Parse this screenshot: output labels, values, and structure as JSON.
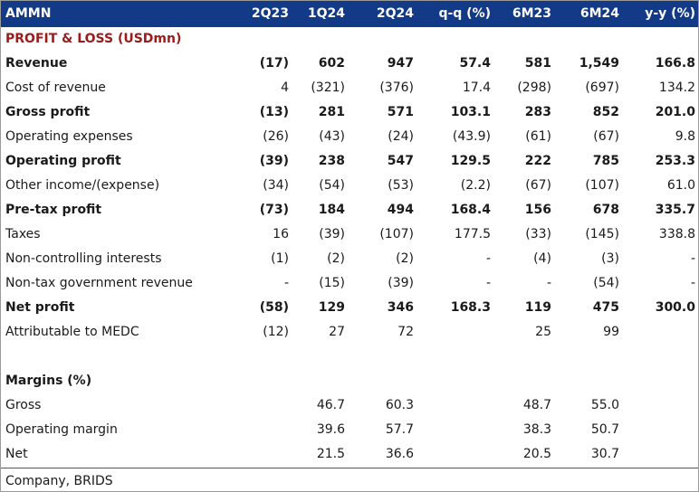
{
  "header": {
    "ticker": "AMMN",
    "columns": [
      "2Q23",
      "1Q24",
      "2Q24",
      "q-q (%)",
      "6M23",
      "6M24",
      "y-y (%)"
    ]
  },
  "section_title": "PROFIT & LOSS (USDmn)",
  "rows": [
    {
      "label": "Revenue",
      "bold": true,
      "values": [
        "(17)",
        "602",
        "947",
        "57.4",
        "581",
        "1,549",
        "166.8"
      ]
    },
    {
      "label": "Cost of revenue",
      "bold": false,
      "values": [
        "4",
        "(321)",
        "(376)",
        "17.4",
        "(298)",
        "(697)",
        "134.2"
      ]
    },
    {
      "label": "Gross profit",
      "bold": true,
      "values": [
        "(13)",
        "281",
        "571",
        "103.1",
        "283",
        "852",
        "201.0"
      ]
    },
    {
      "label": "Operating expenses",
      "bold": false,
      "values": [
        "(26)",
        "(43)",
        "(24)",
        "(43.9)",
        "(61)",
        "(67)",
        "9.8"
      ]
    },
    {
      "label": "Operating profit",
      "bold": true,
      "values": [
        "(39)",
        "238",
        "547",
        "129.5",
        "222",
        "785",
        "253.3"
      ]
    },
    {
      "label": "Other income/(expense)",
      "bold": false,
      "values": [
        "(34)",
        "(54)",
        "(53)",
        "(2.2)",
        "(67)",
        "(107)",
        "61.0"
      ]
    },
    {
      "label": "Pre-tax profit",
      "bold": true,
      "values": [
        "(73)",
        "184",
        "494",
        "168.4",
        "156",
        "678",
        "335.7"
      ]
    },
    {
      "label": "Taxes",
      "bold": false,
      "values": [
        "16",
        "(39)",
        "(107)",
        "177.5",
        "(33)",
        "(145)",
        "338.8"
      ]
    },
    {
      "label": "Non-controlling interests",
      "bold": false,
      "values": [
        "(1)",
        "(2)",
        "(2)",
        "-",
        "(4)",
        "(3)",
        "-"
      ]
    },
    {
      "label": "Non-tax government revenue",
      "bold": false,
      "values": [
        "-",
        "(15)",
        "(39)",
        "-",
        "-",
        "(54)",
        "-"
      ]
    },
    {
      "label": "Net profit",
      "bold": true,
      "values": [
        "(58)",
        "129",
        "346",
        "168.3",
        "119",
        "475",
        "300.0"
      ]
    },
    {
      "label": "Attributable to MEDC",
      "bold": false,
      "values": [
        "(12)",
        "27",
        "72",
        "",
        "25",
        "99",
        ""
      ]
    },
    {
      "label": "",
      "bold": false,
      "values": [
        "",
        "",
        "",
        "",
        "",
        "",
        ""
      ]
    },
    {
      "label": "Margins (%)",
      "bold": true,
      "values": [
        "",
        "",
        "",
        "",
        "",
        "",
        ""
      ]
    },
    {
      "label": "Gross",
      "bold": false,
      "values": [
        "",
        "46.7",
        "60.3",
        "",
        "48.7",
        "55.0",
        ""
      ]
    },
    {
      "label": "Operating margin",
      "bold": false,
      "values": [
        "",
        "39.6",
        "57.7",
        "",
        "38.3",
        "50.7",
        ""
      ]
    },
    {
      "label": "Net",
      "bold": false,
      "values": [
        "",
        "21.5",
        "36.6",
        "",
        "20.5",
        "30.7",
        ""
      ]
    }
  ],
  "source": "Company, BRIDS"
}
